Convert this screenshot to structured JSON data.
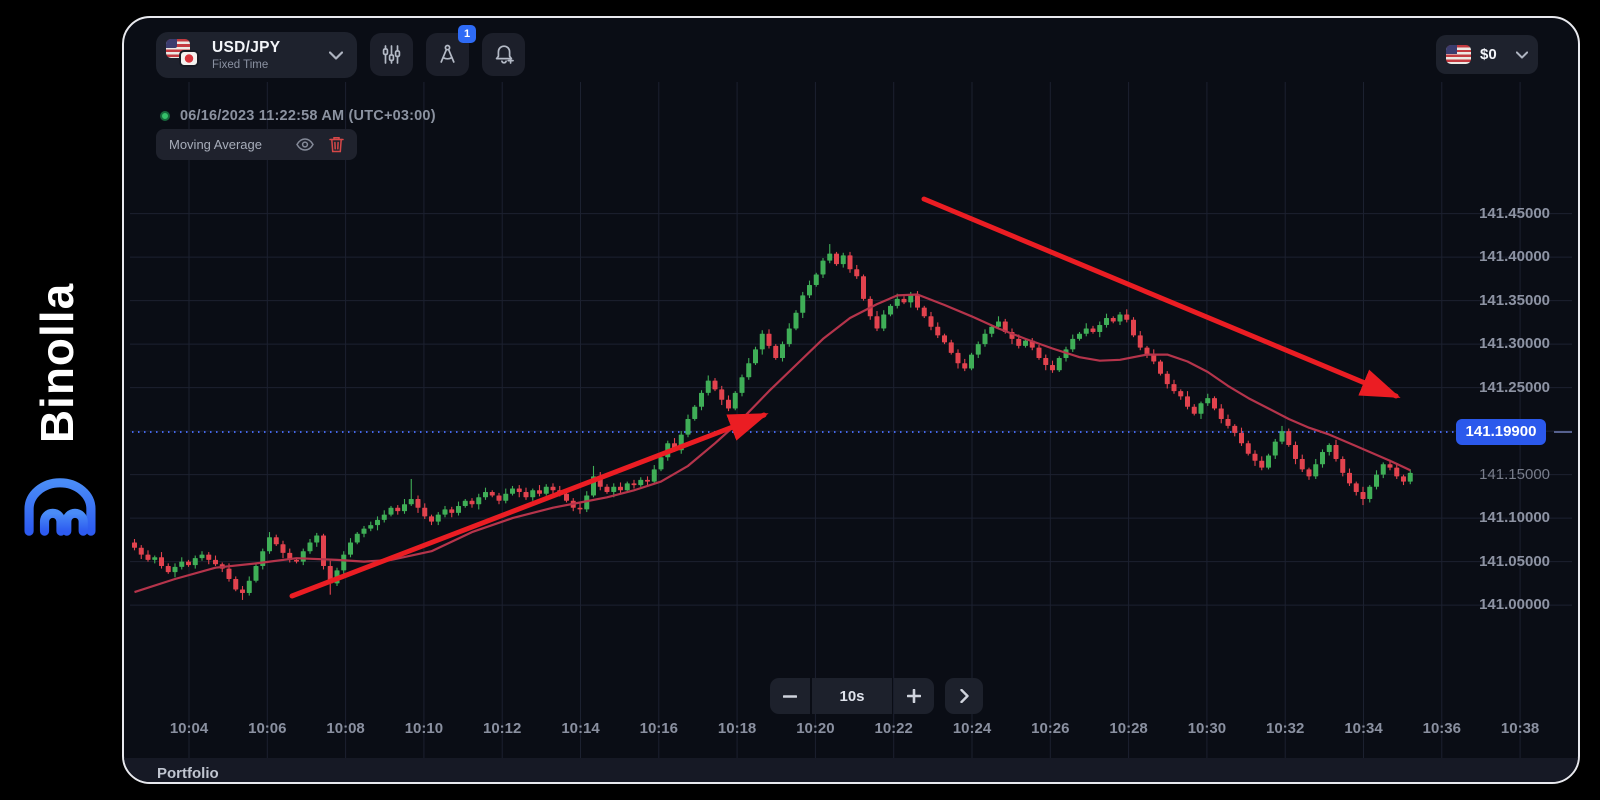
{
  "brand": {
    "name": "Binolla"
  },
  "toolbar": {
    "symbol": {
      "pair": "USD/JPY",
      "mode": "Fixed Time"
    },
    "drawing_badge": "1",
    "balance": {
      "amount": "$0"
    }
  },
  "status": {
    "datetime": "06/16/2023  11:22:58 AM  (UTC+03:00)"
  },
  "indicator_chip": {
    "label": "Moving Average"
  },
  "timeframe": {
    "value": "10s"
  },
  "portfolio": {
    "label": "Portfolio"
  },
  "chart_data": {
    "type": "candlestick",
    "title": "USD/JPY Fixed Time, 10-second candles",
    "current_price_label": "141.19900",
    "current_price_value": 141.199,
    "price_base": 141,
    "x_labels": [
      "10:04",
      "10:06",
      "10:08",
      "10:10",
      "10:12",
      "10:14",
      "10:16",
      "10:18",
      "10:20",
      "10:22",
      "10:24",
      "10:26",
      "10:28",
      "10:30",
      "10:32",
      "10:34",
      "10:36",
      "10:38"
    ],
    "y_ticks": [
      {
        "label": "141.45000",
        "value": 141.45,
        "dim": false
      },
      {
        "label": "141.40000",
        "value": 141.4,
        "dim": false
      },
      {
        "label": "141.35000",
        "value": 141.35,
        "dim": false
      },
      {
        "label": "141.30000",
        "value": 141.3,
        "dim": false
      },
      {
        "label": "141.25000",
        "value": 141.25,
        "dim": false
      },
      {
        "label": "141.15000",
        "value": 141.15,
        "dim": true
      },
      {
        "label": "141.10000",
        "value": 141.1,
        "dim": false
      },
      {
        "label": "141.05000",
        "value": 141.05,
        "dim": false
      },
      {
        "label": "141.00000",
        "value": 141.0,
        "dim": false
      }
    ],
    "grid_prices": [
      141.0,
      141.05,
      141.1,
      141.15,
      141.2,
      141.25,
      141.3,
      141.35,
      141.4,
      141.45
    ],
    "ylim": [
      140.99,
      141.47
    ],
    "legend": "Moving Average",
    "colors": {
      "up": "#3fae57",
      "down": "#e2434e",
      "ma": "#b5344b",
      "arrow": "#eb1d23",
      "grid": "#1c2130",
      "price_line": "#4466e8",
      "badge_bg": "#2b59ec",
      "axis_text": "#8d93a3",
      "accent_blue": "#2e6bf6"
    },
    "candles": [
      [
        72,
        76,
        63,
        66
      ],
      [
        66,
        69,
        53,
        58
      ],
      [
        58,
        63,
        50,
        52
      ],
      [
        52,
        57,
        48,
        55
      ],
      [
        55,
        61,
        42,
        45
      ],
      [
        45,
        48,
        36,
        38
      ],
      [
        38,
        48,
        32,
        44
      ],
      [
        44,
        55,
        41,
        50
      ],
      [
        50,
        52,
        44,
        46
      ],
      [
        46,
        57,
        42,
        54
      ],
      [
        54,
        62,
        51,
        58
      ],
      [
        58,
        61,
        47,
        52
      ],
      [
        52,
        57,
        45,
        47
      ],
      [
        47,
        49,
        38,
        42
      ],
      [
        42,
        48,
        27,
        30
      ],
      [
        30,
        33,
        16,
        18
      ],
      [
        18,
        22,
        6,
        14
      ],
      [
        14,
        33,
        11,
        28
      ],
      [
        28,
        47,
        26,
        45
      ],
      [
        45,
        65,
        41,
        62
      ],
      [
        62,
        84,
        59,
        78
      ],
      [
        78,
        81,
        68,
        70
      ],
      [
        70,
        74,
        54,
        60
      ],
      [
        60,
        65,
        49,
        52
      ],
      [
        52,
        54,
        48,
        50
      ],
      [
        50,
        65,
        46,
        62
      ],
      [
        62,
        76,
        59,
        72
      ],
      [
        72,
        83,
        67,
        80
      ],
      [
        80,
        82,
        41,
        45
      ],
      [
        45,
        51,
        12,
        25
      ],
      [
        25,
        43,
        22,
        40
      ],
      [
        40,
        62,
        36,
        58
      ],
      [
        58,
        77,
        55,
        72
      ],
      [
        72,
        84,
        70,
        82
      ],
      [
        82,
        91,
        78,
        88
      ],
      [
        88,
        96,
        85,
        92
      ],
      [
        92,
        102,
        86,
        98
      ],
      [
        98,
        109,
        95,
        104
      ],
      [
        104,
        114,
        102,
        112
      ],
      [
        112,
        115,
        104,
        108
      ],
      [
        108,
        122,
        105,
        116
      ],
      [
        116,
        145,
        114,
        122
      ],
      [
        122,
        126,
        106,
        112
      ],
      [
        112,
        117,
        99,
        102
      ],
      [
        102,
        104,
        92,
        96
      ],
      [
        96,
        107,
        92,
        104
      ],
      [
        104,
        114,
        101,
        110
      ],
      [
        110,
        113,
        101,
        106
      ],
      [
        106,
        119,
        103,
        114
      ],
      [
        114,
        122,
        112,
        120
      ],
      [
        120,
        123,
        112,
        116
      ],
      [
        116,
        128,
        110,
        124
      ],
      [
        124,
        135,
        121,
        130
      ],
      [
        130,
        132,
        124,
        126
      ],
      [
        126,
        129,
        116,
        120
      ],
      [
        120,
        134,
        117,
        128
      ],
      [
        128,
        137,
        126,
        134
      ],
      [
        134,
        138,
        124,
        130
      ],
      [
        130,
        135,
        121,
        124
      ],
      [
        124,
        134,
        120,
        132
      ],
      [
        132,
        138,
        125,
        128
      ],
      [
        128,
        139,
        126,
        136
      ],
      [
        136,
        140,
        126,
        132
      ],
      [
        132,
        137,
        125,
        128
      ],
      [
        128,
        130,
        118,
        120
      ],
      [
        120,
        123,
        108,
        112
      ],
      [
        112,
        117,
        105,
        110
      ],
      [
        110,
        131,
        107,
        126
      ],
      [
        126,
        160,
        124,
        148
      ],
      [
        148,
        153,
        132,
        136
      ],
      [
        136,
        139,
        128,
        130
      ],
      [
        130,
        140,
        124,
        136
      ],
      [
        136,
        141,
        129,
        132
      ],
      [
        132,
        142,
        130,
        140
      ],
      [
        140,
        144,
        134,
        138
      ],
      [
        138,
        147,
        136,
        144
      ],
      [
        144,
        148,
        136,
        142
      ],
      [
        142,
        161,
        139,
        156
      ],
      [
        156,
        172,
        154,
        170
      ],
      [
        170,
        189,
        166,
        186
      ],
      [
        186,
        192,
        176,
        178
      ],
      [
        178,
        200,
        174,
        196
      ],
      [
        196,
        219,
        193,
        214
      ],
      [
        214,
        230,
        212,
        228
      ],
      [
        228,
        247,
        224,
        244
      ],
      [
        244,
        264,
        241,
        258
      ],
      [
        258,
        261,
        246,
        248
      ],
      [
        248,
        252,
        230,
        236
      ],
      [
        236,
        241,
        223,
        226
      ],
      [
        226,
        246,
        224,
        244
      ],
      [
        244,
        265,
        240,
        262
      ],
      [
        262,
        284,
        259,
        278
      ],
      [
        278,
        297,
        276,
        294
      ],
      [
        294,
        316,
        288,
        312
      ],
      [
        312,
        317,
        295,
        298
      ],
      [
        298,
        300,
        282,
        284
      ],
      [
        284,
        303,
        280,
        300
      ],
      [
        300,
        324,
        297,
        318
      ],
      [
        318,
        339,
        316,
        336
      ],
      [
        336,
        360,
        330,
        356
      ],
      [
        356,
        373,
        353,
        368
      ],
      [
        368,
        382,
        366,
        380
      ],
      [
        380,
        399,
        376,
        396
      ],
      [
        396,
        415,
        393,
        404
      ],
      [
        404,
        406,
        390,
        392
      ],
      [
        392,
        405,
        388,
        402
      ],
      [
        402,
        406,
        382,
        386
      ],
      [
        386,
        391,
        375,
        378
      ],
      [
        378,
        380,
        350,
        352
      ],
      [
        352,
        355,
        328,
        332
      ],
      [
        332,
        338,
        315,
        318
      ],
      [
        318,
        339,
        315,
        334
      ],
      [
        334,
        346,
        332,
        344
      ],
      [
        344,
        358,
        341,
        352
      ],
      [
        352,
        355,
        346,
        348
      ],
      [
        348,
        360,
        342,
        356
      ],
      [
        356,
        361,
        339,
        342
      ],
      [
        342,
        344,
        330,
        332
      ],
      [
        332,
        337,
        316,
        320
      ],
      [
        320,
        325,
        307,
        310
      ],
      [
        310,
        312,
        300,
        302
      ],
      [
        302,
        305,
        288,
        290
      ],
      [
        290,
        294,
        272,
        278
      ],
      [
        278,
        283,
        269,
        272
      ],
      [
        272,
        290,
        270,
        288
      ],
      [
        288,
        303,
        284,
        300
      ],
      [
        300,
        317,
        297,
        312
      ],
      [
        312,
        322,
        308,
        320
      ],
      [
        320,
        332,
        317,
        326
      ],
      [
        326,
        329,
        312,
        314
      ],
      [
        314,
        318,
        300,
        306
      ],
      [
        306,
        311,
        295,
        298
      ],
      [
        298,
        306,
        296,
        304
      ],
      [
        304,
        307,
        293,
        296
      ],
      [
        296,
        299,
        282,
        284
      ],
      [
        284,
        288,
        270,
        276
      ],
      [
        276,
        281,
        267,
        270
      ],
      [
        270,
        286,
        268,
        284
      ],
      [
        284,
        297,
        280,
        294
      ],
      [
        294,
        311,
        291,
        306
      ],
      [
        306,
        314,
        304,
        312
      ],
      [
        312,
        324,
        309,
        318
      ],
      [
        318,
        321,
        312,
        314
      ],
      [
        314,
        326,
        308,
        322
      ],
      [
        322,
        335,
        319,
        330
      ],
      [
        330,
        332,
        324,
        326
      ],
      [
        326,
        337,
        322,
        334
      ],
      [
        334,
        340,
        325,
        328
      ],
      [
        328,
        331,
        308,
        310
      ],
      [
        310,
        315,
        293,
        296
      ],
      [
        296,
        298,
        284,
        288
      ],
      [
        288,
        294,
        277,
        280
      ],
      [
        280,
        282,
        264,
        266
      ],
      [
        266,
        269,
        249,
        254
      ],
      [
        254,
        259,
        243,
        246
      ],
      [
        246,
        248,
        236,
        240
      ],
      [
        240,
        246,
        225,
        228
      ],
      [
        228,
        231,
        218,
        220
      ],
      [
        220,
        234,
        214,
        232
      ],
      [
        232,
        243,
        229,
        238
      ],
      [
        238,
        240,
        224,
        226
      ],
      [
        226,
        231,
        209,
        214
      ],
      [
        214,
        219,
        203,
        206
      ],
      [
        206,
        208,
        194,
        198
      ],
      [
        198,
        204,
        183,
        186
      ],
      [
        186,
        189,
        172,
        174
      ],
      [
        174,
        178,
        160,
        166
      ],
      [
        166,
        171,
        155,
        158
      ],
      [
        158,
        174,
        156,
        172
      ],
      [
        172,
        191,
        168,
        188
      ],
      [
        188,
        206,
        185,
        200
      ],
      [
        200,
        203,
        182,
        184
      ],
      [
        184,
        188,
        162,
        168
      ],
      [
        168,
        173,
        153,
        156
      ],
      [
        156,
        158,
        144,
        148
      ],
      [
        148,
        168,
        145,
        162
      ],
      [
        162,
        179,
        158,
        176
      ],
      [
        176,
        186,
        172,
        184
      ],
      [
        184,
        190,
        165,
        168
      ],
      [
        168,
        171,
        148,
        152
      ],
      [
        152,
        157,
        137,
        140
      ],
      [
        140,
        142,
        126,
        130
      ],
      [
        130,
        136,
        115,
        122
      ],
      [
        122,
        138,
        118,
        136
      ],
      [
        136,
        155,
        133,
        150
      ],
      [
        150,
        164,
        146,
        162
      ],
      [
        162,
        167,
        155,
        158
      ],
      [
        158,
        163,
        145,
        148
      ],
      [
        148,
        150,
        138,
        142
      ],
      [
        142,
        156,
        139,
        152
      ]
    ],
    "ma_points": [
      [
        0,
        15
      ],
      [
        6,
        30
      ],
      [
        12,
        43
      ],
      [
        18,
        48
      ],
      [
        24,
        54
      ],
      [
        30,
        52
      ],
      [
        34,
        50
      ],
      [
        38,
        52
      ],
      [
        44,
        62
      ],
      [
        50,
        84
      ],
      [
        56,
        100
      ],
      [
        62,
        112
      ],
      [
        66,
        118
      ],
      [
        70,
        124
      ],
      [
        74,
        132
      ],
      [
        78,
        142
      ],
      [
        82,
        160
      ],
      [
        86,
        186
      ],
      [
        90,
        214
      ],
      [
        94,
        246
      ],
      [
        98,
        276
      ],
      [
        102,
        306
      ],
      [
        106,
        330
      ],
      [
        110,
        346
      ],
      [
        113,
        356
      ],
      [
        116,
        357
      ],
      [
        120,
        345
      ],
      [
        124,
        332
      ],
      [
        128,
        318
      ],
      [
        132,
        306
      ],
      [
        136,
        295
      ],
      [
        140,
        285
      ],
      [
        143,
        281
      ],
      [
        146,
        282
      ],
      [
        150,
        288
      ],
      [
        153,
        288
      ],
      [
        156,
        280
      ],
      [
        159,
        268
      ],
      [
        162,
        252
      ],
      [
        165,
        238
      ],
      [
        168,
        226
      ],
      [
        171,
        214
      ],
      [
        174,
        204
      ],
      [
        177,
        196
      ],
      [
        180,
        186
      ],
      [
        183,
        176
      ],
      [
        186,
        166
      ],
      [
        189,
        155
      ]
    ],
    "annotations": {
      "arrows": [
        {
          "name": "uptrend-arrow",
          "from": [
            168,
            578
          ],
          "to": [
            640,
            397
          ]
        },
        {
          "name": "downtrend-arrow",
          "from": [
            800,
            181
          ],
          "to": [
            1272,
            378
          ]
        }
      ],
      "current_price_line_y_price": 141.199
    }
  }
}
